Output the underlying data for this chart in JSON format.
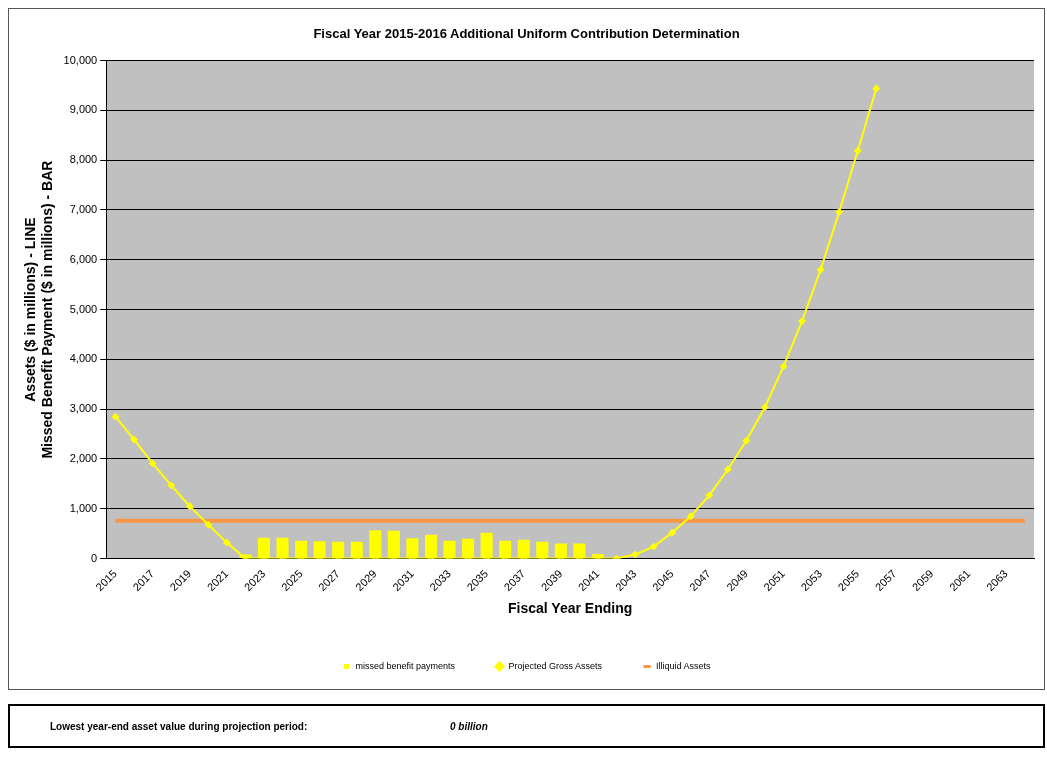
{
  "chart_data": {
    "type": "bar",
    "title": "Fiscal Year 2015-2016 Additional Uniform Contribution Determination",
    "xlabel": "Fiscal Year Ending",
    "ylabel": "Assets ($ in millions) - LINE\nMissed Benefit Payment ($ in millions) - BAR",
    "categories": [
      "2015",
      null,
      "2017",
      null,
      "2019",
      null,
      "2021",
      null,
      "2023",
      null,
      "2025",
      null,
      "2027",
      null,
      "2029",
      null,
      "2031",
      null,
      "2033",
      null,
      "2035",
      null,
      "2037",
      null,
      "2039",
      null,
      "2041",
      null,
      "2043",
      null,
      "2045",
      null,
      "2047",
      null,
      "2049",
      null,
      "2051",
      null,
      "2053",
      null,
      "2055",
      null,
      "2057",
      null,
      "2059",
      null,
      "2061",
      null,
      "2063",
      null
    ],
    "series": [
      {
        "name": "missed benefit payments",
        "color": "#ffff00",
        "values": [
          0,
          0,
          0,
          0,
          0,
          0,
          0,
          80,
          420,
          420,
          360,
          350,
          340,
          340,
          570,
          560,
          410,
          480,
          360,
          400,
          520,
          360,
          380,
          340,
          300,
          300,
          90,
          0,
          0,
          0,
          0,
          0,
          0,
          0,
          0,
          0,
          0,
          0,
          0,
          0,
          0,
          0,
          0,
          0,
          0,
          0,
          0,
          0,
          0,
          0
        ]
      },
      {
        "name": "Projected Gross Assets",
        "type": "line",
        "marker": "diamond",
        "color": "#ffff00",
        "values": [
          2850,
          2390,
          1910,
          1470,
          1050,
          680,
          320,
          0,
          0,
          0,
          0,
          0,
          0,
          0,
          0,
          0,
          0,
          0,
          0,
          0,
          0,
          0,
          0,
          0,
          0,
          0,
          0,
          0,
          80,
          240,
          520,
          850,
          1270,
          1790,
          2370,
          3040,
          3860,
          4770,
          5800,
          6960,
          8190,
          9440,
          null,
          null,
          null,
          null,
          null,
          null,
          null,
          null
        ]
      },
      {
        "name": "Illiquid Assets",
        "type": "line",
        "marker": "none",
        "color": "#f79646",
        "values": [
          760,
          760,
          760,
          760,
          760,
          760,
          760,
          760,
          760,
          760,
          760,
          760,
          760,
          760,
          760,
          760,
          760,
          760,
          760,
          760,
          760,
          760,
          760,
          760,
          760,
          760,
          760,
          760,
          760,
          760,
          760,
          760,
          760,
          760,
          760,
          760,
          760,
          760,
          760,
          760,
          760,
          760,
          760,
          760,
          760,
          760,
          760,
          760,
          760,
          760
        ]
      }
    ],
    "ylim": [
      0,
      10000
    ],
    "yticks": [
      0,
      {
        "value": 1000,
        "label": "1,000"
      },
      {
        "value": 2000,
        "label": "2,000"
      },
      {
        "value": 3000,
        "label": "3,000"
      },
      {
        "value": 4000,
        "label": "4,000"
      },
      {
        "value": 5000,
        "label": "5,000"
      },
      {
        "value": 6000,
        "label": "6,000"
      },
      {
        "value": 7000,
        "label": "7,000"
      },
      {
        "value": 8000,
        "label": "8,000"
      },
      {
        "value": 9000,
        "label": "9,000"
      },
      {
        "value": 10000,
        "label": "10,000"
      }
    ],
    "grid": "y",
    "legend": "bottom",
    "annotations": [
      "Lowest year-end asset value during projection period:",
      "0  billion"
    ]
  }
}
